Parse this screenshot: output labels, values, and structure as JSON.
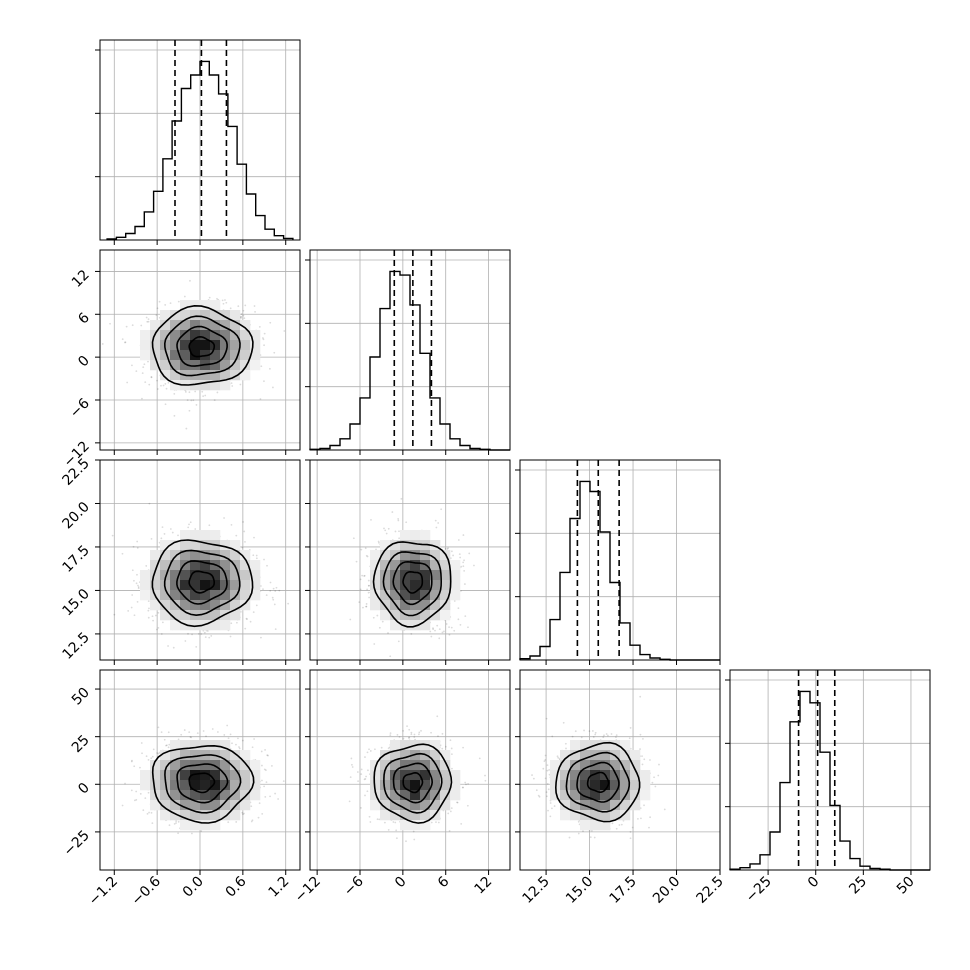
{
  "chart_data": {
    "type": "scatter",
    "kind": "corner-plot",
    "title": "",
    "grid": true,
    "parameters": [
      {
        "range": [
          -1.4,
          1.4
        ],
        "ticks": [
          -1.2,
          -0.6,
          0.0,
          0.6,
          1.2
        ],
        "tick_labels": [
          "−1.2",
          "−0.6",
          "0.0",
          "0.6",
          "1.2"
        ],
        "quantiles": [
          -0.35,
          0.02,
          0.37
        ],
        "mean": 0.02,
        "sd": 0.35
      },
      {
        "range": [
          -13,
          15
        ],
        "ticks": [
          -12,
          -6,
          0,
          6,
          12
        ],
        "tick_labels": [
          "−12",
          "−6",
          "0",
          "6",
          "12"
        ],
        "quantiles": [
          -1.2,
          1.4,
          4.0
        ],
        "mean": 1.4,
        "sd": 2.7
      },
      {
        "range": [
          11,
          22.5
        ],
        "ticks": [
          12.5,
          15.0,
          17.5,
          20.0,
          22.5
        ],
        "tick_labels": [
          "12.5",
          "15.0",
          "17.5",
          "20.0",
          "22.5"
        ],
        "quantiles": [
          14.3,
          15.5,
          16.7
        ],
        "mean": 15.5,
        "sd": 1.2
      },
      {
        "range": [
          -45,
          60
        ],
        "ticks": [
          -25,
          0,
          25,
          50
        ],
        "tick_labels": [
          "−25",
          "0",
          "25",
          "50"
        ],
        "quantiles": [
          -9,
          1,
          10
        ],
        "mean": 1,
        "sd": 10
      }
    ],
    "histograms": [
      {
        "param": 0,
        "bin_edges_range": [
          -1.3,
          1.3
        ],
        "counts": [
          2,
          5,
          12,
          25,
          52,
          90,
          150,
          220,
          280,
          305,
          330,
          305,
          270,
          210,
          140,
          85,
          45,
          20,
          8,
          3
        ]
      },
      {
        "param": 1,
        "bin_edges_range": [
          -13,
          15
        ],
        "counts": [
          1,
          2,
          6,
          15,
          35,
          70,
          125,
          190,
          240,
          235,
          195,
          130,
          70,
          35,
          15,
          6,
          2,
          1,
          0,
          0
        ]
      },
      {
        "param": 2,
        "bin_edges_range": [
          11,
          22.5
        ],
        "counts": [
          2,
          6,
          20,
          60,
          130,
          210,
          265,
          250,
          190,
          115,
          55,
          22,
          8,
          3,
          1,
          0,
          0,
          0,
          0,
          0
        ]
      },
      {
        "param": 3,
        "bin_edges_range": [
          -45,
          60
        ],
        "counts": [
          1,
          3,
          8,
          20,
          50,
          115,
          195,
          235,
          220,
          155,
          85,
          38,
          15,
          5,
          2,
          1,
          0,
          0,
          0,
          0
        ]
      }
    ],
    "density_levels": [
      0.393,
      0.865,
      0.989
    ]
  }
}
